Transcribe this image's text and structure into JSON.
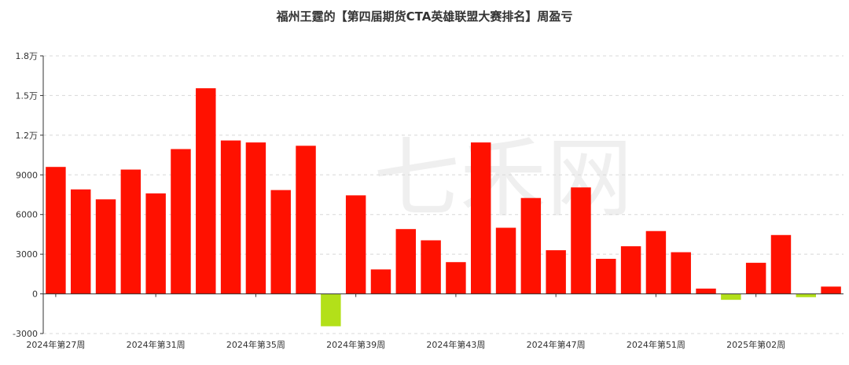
{
  "chart_data": {
    "type": "bar",
    "title": "福州王霆的【第四届期货CTA英雄联盟大赛排名】周盈亏",
    "xlabel": "",
    "ylabel": "",
    "ylim": [
      -3000,
      18000
    ],
    "yticks": [
      {
        "value": 18000,
        "label": "1.8万"
      },
      {
        "value": 15000,
        "label": "1.5万"
      },
      {
        "value": 12000,
        "label": "1.2万"
      },
      {
        "value": 9000,
        "label": "9000"
      },
      {
        "value": 6000,
        "label": "6000"
      },
      {
        "value": 3000,
        "label": "3000"
      },
      {
        "value": 0,
        "label": "0"
      },
      {
        "value": -3000,
        "label": "-3000"
      }
    ],
    "xtick_labels": [
      {
        "index": 0,
        "label": "2024年第27周"
      },
      {
        "index": 4,
        "label": "2024年第31周"
      },
      {
        "index": 8,
        "label": "2024年第35周"
      },
      {
        "index": 12,
        "label": "2024年第39周"
      },
      {
        "index": 16,
        "label": "2024年第43周"
      },
      {
        "index": 20,
        "label": "2024年第47周"
      },
      {
        "index": 24,
        "label": "2024年第51周"
      },
      {
        "index": 28,
        "label": "2025年第02周"
      }
    ],
    "values": [
      9600,
      7900,
      7150,
      9400,
      7600,
      10950,
      15550,
      11600,
      11450,
      7850,
      11200,
      -2450,
      7450,
      1850,
      4900,
      4050,
      2400,
      11450,
      5000,
      7250,
      3300,
      8050,
      2650,
      3600,
      4750,
      3150,
      400,
      -450,
      2350,
      4450,
      -250,
      550
    ],
    "grid": true,
    "legend": "none",
    "colors": {
      "positive": "#ff1100",
      "negative": "#b3e019",
      "grid": "#d8d8d8",
      "axis": "#333333"
    }
  },
  "watermark": "七禾网"
}
